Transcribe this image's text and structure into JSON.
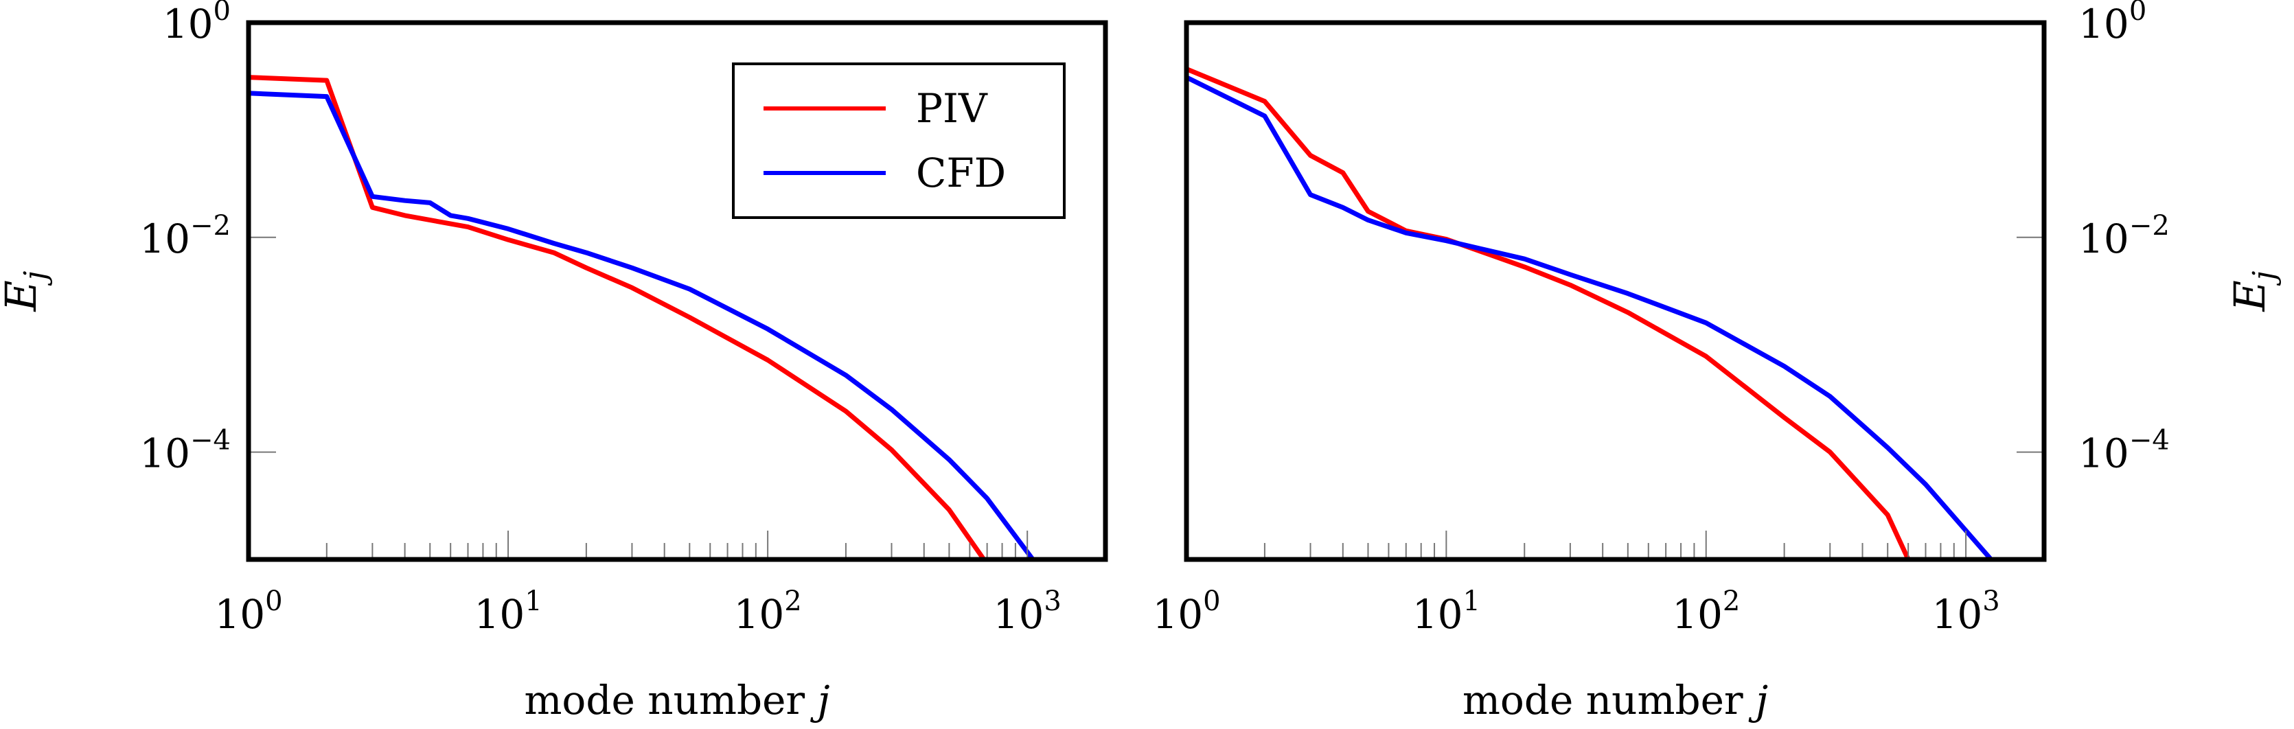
{
  "chart_data": [
    {
      "type": "line",
      "xscale": "log",
      "yscale": "log",
      "xlim": [
        1,
        2000
      ],
      "ylim": [
        1e-05,
        1
      ],
      "xlabel": "mode number j",
      "ylabel": "E_j",
      "ylabel_side": "left",
      "legend": {
        "placement": "top-right",
        "entries": [
          "PIV",
          "CFD"
        ]
      },
      "x_ticks": [
        {
          "base": "10",
          "exp": "0",
          "value": 1
        },
        {
          "base": "10",
          "exp": "1",
          "value": 10
        },
        {
          "base": "10",
          "exp": "2",
          "value": 100
        },
        {
          "base": "10",
          "exp": "3",
          "value": 1000
        }
      ],
      "y_ticks": [
        {
          "base": "10",
          "exp": "0",
          "value": 1
        },
        {
          "base": "10",
          "exp": "−2",
          "value": 0.01
        },
        {
          "base": "10",
          "exp": "−4",
          "value": 0.0001
        }
      ],
      "series": [
        {
          "name": "PIV",
          "color": "#ff0000",
          "x": [
            1,
            2,
            3,
            4,
            5,
            7,
            10,
            15,
            20,
            30,
            50,
            100,
            200,
            300,
            500,
            680
          ],
          "y": [
            0.31,
            0.29,
            0.019,
            0.016,
            0.0145,
            0.0125,
            0.0095,
            0.0072,
            0.0052,
            0.0034,
            0.0018,
            0.00072,
            0.00024,
            0.000105,
            2.9e-05,
            1e-05
          ]
        },
        {
          "name": "CFD",
          "color": "#0000ff",
          "x": [
            1,
            2,
            3,
            4,
            5,
            6,
            7,
            10,
            15,
            20,
            30,
            50,
            100,
            200,
            300,
            500,
            700,
            1050
          ],
          "y": [
            0.22,
            0.205,
            0.024,
            0.022,
            0.021,
            0.016,
            0.015,
            0.012,
            0.0088,
            0.0072,
            0.0052,
            0.0033,
            0.0014,
            0.00052,
            0.00025,
            8.5e-05,
            3.7e-05,
            1e-05
          ]
        }
      ]
    },
    {
      "type": "line",
      "xscale": "log",
      "yscale": "log",
      "xlim": [
        1,
        2000
      ],
      "ylim": [
        1e-05,
        1
      ],
      "xlabel": "mode number j",
      "ylabel": "E_j",
      "ylabel_side": "right",
      "x_ticks": [
        {
          "base": "10",
          "exp": "0",
          "value": 1
        },
        {
          "base": "10",
          "exp": "1",
          "value": 10
        },
        {
          "base": "10",
          "exp": "2",
          "value": 100
        },
        {
          "base": "10",
          "exp": "3",
          "value": 1000
        }
      ],
      "y_ticks": [
        {
          "base": "10",
          "exp": "0",
          "value": 1
        },
        {
          "base": "10",
          "exp": "−2",
          "value": 0.01
        },
        {
          "base": "10",
          "exp": "−4",
          "value": 0.0001
        }
      ],
      "series": [
        {
          "name": "PIV",
          "color": "#ff0000",
          "x": [
            1,
            2,
            3,
            4,
            5,
            7,
            10,
            20,
            30,
            50,
            100,
            200,
            300,
            500,
            600
          ],
          "y": [
            0.37,
            0.185,
            0.058,
            0.04,
            0.0175,
            0.0115,
            0.0096,
            0.0053,
            0.0036,
            0.002,
            0.00078,
            0.00021,
            0.0001,
            2.6e-05,
            1e-05
          ]
        },
        {
          "name": "CFD",
          "color": "#0000ff",
          "x": [
            1,
            2,
            3,
            4,
            5,
            7,
            10,
            20,
            30,
            50,
            100,
            200,
            300,
            500,
            700,
            1250
          ],
          "y": [
            0.31,
            0.135,
            0.025,
            0.019,
            0.0145,
            0.011,
            0.0093,
            0.0063,
            0.0045,
            0.003,
            0.0016,
            0.00063,
            0.00033,
            0.00011,
            5e-05,
            1e-05
          ]
        }
      ]
    }
  ],
  "legend_labels": {
    "piv": "PIV",
    "cfd": "CFD"
  }
}
